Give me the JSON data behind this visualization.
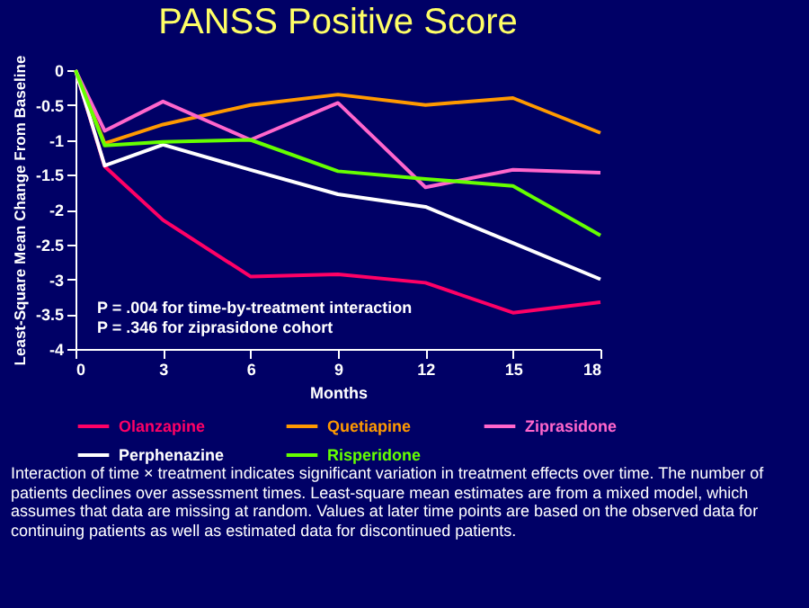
{
  "chart_data": {
    "type": "line",
    "title": "PANSS Positive Score",
    "xlabel": "Months",
    "ylabel": "Least-Square Mean Change From Baseline",
    "x": [
      0,
      1,
      3,
      6,
      9,
      12,
      15,
      18
    ],
    "xlim": [
      0,
      18
    ],
    "xticks": [
      0,
      3,
      6,
      9,
      12,
      15,
      18
    ],
    "ylim": [
      -4,
      0
    ],
    "yticks": [
      -4,
      -3.5,
      -3,
      -2.5,
      -2,
      -1.5,
      -1,
      -0.5,
      0
    ],
    "grid": false,
    "legend": "bottom",
    "marker": "none",
    "line_style": "solid",
    "series": [
      {
        "name": "Olanzapine",
        "color": "#ff0066",
        "values": [
          0,
          -1.38,
          -2.15,
          -2.96,
          -2.93,
          -3.05,
          -3.48,
          -3.33
        ]
      },
      {
        "name": "Quetiapine",
        "color": "#ff9900",
        "values": [
          0,
          -1.05,
          -0.78,
          -0.5,
          -0.35,
          -0.5,
          -0.4,
          -0.9
        ]
      },
      {
        "name": "Ziprasidone",
        "color": "#ff66cc",
        "values": [
          0,
          -0.87,
          -0.45,
          -1.0,
          -0.47,
          -1.68,
          -1.43,
          -1.47
        ]
      },
      {
        "name": "Perphenazine",
        "color": "#ffffff",
        "values": [
          0,
          -1.37,
          -1.07,
          -1.43,
          -1.78,
          -1.96,
          -2.48,
          -3.0
        ]
      },
      {
        "name": "Risperidone",
        "color": "#66ff00",
        "values": [
          0,
          -1.08,
          -1.03,
          -1.0,
          -1.45,
          -1.56,
          -1.66,
          -2.37
        ]
      }
    ],
    "annotations": [
      "P = .004 for time-by-treatment interaction",
      "P = .346 for ziprasidone cohort",
      "Interaction of time × treatment indicates significant variation in treatment effects over time. The number of patients declines over assessment times. Least-square mean estimates are from a mixed model, which assumes that data are missing at random. Values at later time points are based on the observed data for continuing patients as well as estimated data for discontinued patients."
    ]
  }
}
